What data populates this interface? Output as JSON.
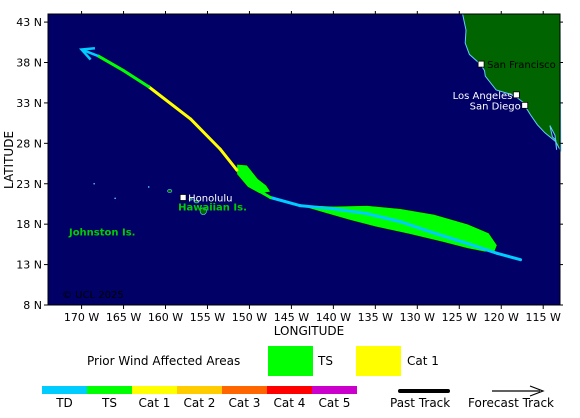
{
  "colors": {
    "ocean": "#000066",
    "land": "#006400",
    "coast": "#66ccff",
    "TD": "#00ccff",
    "TS": "#00ff00",
    "Cat1": "#ffff00",
    "Cat2": "#ffcc00",
    "Cat3": "#ff6600",
    "Cat4": "#ff0000",
    "Cat5": "#cc00cc",
    "island_label": "#00cc00"
  },
  "axes": {
    "xlabel": "LONGITUDE",
    "ylabel": "LATITUDE",
    "lon_ticks": [
      -170,
      -165,
      -160,
      -155,
      -150,
      -145,
      -140,
      -135,
      -130,
      -125,
      -120,
      -115
    ],
    "lon_tick_labels": [
      "170 W",
      "165 W",
      "160 W",
      "155 W",
      "150 W",
      "145 W",
      "140 W",
      "135 W",
      "130 W",
      "125 W",
      "120 W",
      "115 W"
    ],
    "lat_ticks": [
      8,
      13,
      18,
      23,
      28,
      33,
      38,
      43
    ],
    "lat_tick_labels": [
      "8 N",
      "13 N",
      "18 N",
      "23 N",
      "28 N",
      "33 N",
      "38 N",
      "43 N"
    ],
    "lon_range": [
      -174,
      -113
    ],
    "lat_range": [
      8,
      44
    ]
  },
  "places": [
    {
      "name": "San Francisco",
      "lon": -122.4,
      "lat": 37.8
    },
    {
      "name": "Los Angeles",
      "lon": -118.2,
      "lat": 34.0
    },
    {
      "name": "San Diego",
      "lon": -117.2,
      "lat": 32.7
    },
    {
      "name": "Honolulu",
      "lon": -157.9,
      "lat": 21.3
    }
  ],
  "region_labels": [
    {
      "name": "Hawaiian Is.",
      "lon": -158.5,
      "lat": 19.7
    },
    {
      "name": "Johnston Is.",
      "lon": -171.5,
      "lat": 16.6
    }
  ],
  "copyright": "© UCL 2025",
  "track": {
    "past": [
      {
        "lon": -117.7,
        "lat": 13.6,
        "cat": "TD"
      },
      {
        "lon": -120.5,
        "lat": 14.4,
        "cat": "TD"
      },
      {
        "lon": -124.0,
        "lat": 15.6,
        "cat": "TD"
      },
      {
        "lon": -128.0,
        "lat": 16.9,
        "cat": "TD"
      },
      {
        "lon": -132.0,
        "lat": 18.3,
        "cat": "TD"
      },
      {
        "lon": -136.0,
        "lat": 19.3,
        "cat": "TD"
      },
      {
        "lon": -140.0,
        "lat": 19.9,
        "cat": "TD"
      },
      {
        "lon": -144.0,
        "lat": 20.3,
        "cat": "TD"
      },
      {
        "lon": -147.5,
        "lat": 21.3,
        "cat": "TD"
      },
      {
        "lon": -149.5,
        "lat": 22.5,
        "cat": "TS"
      },
      {
        "lon": -151.5,
        "lat": 24.7,
        "cat": "TS"
      },
      {
        "lon": -153.5,
        "lat": 27.3,
        "cat": "Cat1"
      },
      {
        "lon": -157.0,
        "lat": 31.0,
        "cat": "Cat1"
      },
      {
        "lon": -162.0,
        "lat": 35.0,
        "cat": "Cat1"
      },
      {
        "lon": -165.0,
        "lat": 37.0,
        "cat": "TS"
      },
      {
        "lon": -168.0,
        "lat": 38.8,
        "cat": "TS"
      }
    ],
    "forecast": [
      {
        "lon": -168.0,
        "lat": 38.8
      },
      {
        "lon": -170.0,
        "lat": 39.6
      }
    ]
  },
  "wind_swath": {
    "ts": [
      [
        [
          -142.0,
          20.3
        ],
        [
          -140.0,
          20.2
        ],
        [
          -136.0,
          20.3
        ],
        [
          -132.0,
          19.9
        ],
        [
          -128.0,
          19.2
        ],
        [
          -124.0,
          18.0
        ],
        [
          -121.5,
          16.9
        ],
        [
          -120.5,
          15.4
        ],
        [
          -120.8,
          14.6
        ],
        [
          -122.0,
          14.6
        ],
        [
          -124.0,
          15.0
        ],
        [
          -127.0,
          15.8
        ],
        [
          -131.0,
          16.8
        ],
        [
          -135.0,
          17.7
        ],
        [
          -138.0,
          18.5
        ],
        [
          -141.0,
          19.4
        ],
        [
          -143.0,
          20.0
        ]
      ],
      [
        [
          -151.5,
          25.4
        ],
        [
          -150.3,
          25.3
        ],
        [
          -149.0,
          23.6
        ],
        [
          -148.0,
          22.8
        ],
        [
          -147.5,
          22.0
        ],
        [
          -148.8,
          21.8
        ],
        [
          -150.2,
          22.6
        ],
        [
          -151.5,
          24.2
        ]
      ]
    ],
    "cat1": []
  },
  "legend": {
    "swath_title": "Prior Wind Affected Areas",
    "swath_items": [
      {
        "label": "TS",
        "color_key": "TS"
      },
      {
        "label": "Cat 1",
        "color_key": "Cat1"
      }
    ],
    "category_labels": [
      "TD",
      "TS",
      "Cat 1",
      "Cat 2",
      "Cat 3",
      "Cat 4",
      "Cat 5"
    ],
    "category_keys": [
      "TD",
      "TS",
      "Cat1",
      "Cat2",
      "Cat3",
      "Cat4",
      "Cat5"
    ],
    "past_track_label": "Past Track",
    "forecast_track_label": "Forecast Track"
  }
}
